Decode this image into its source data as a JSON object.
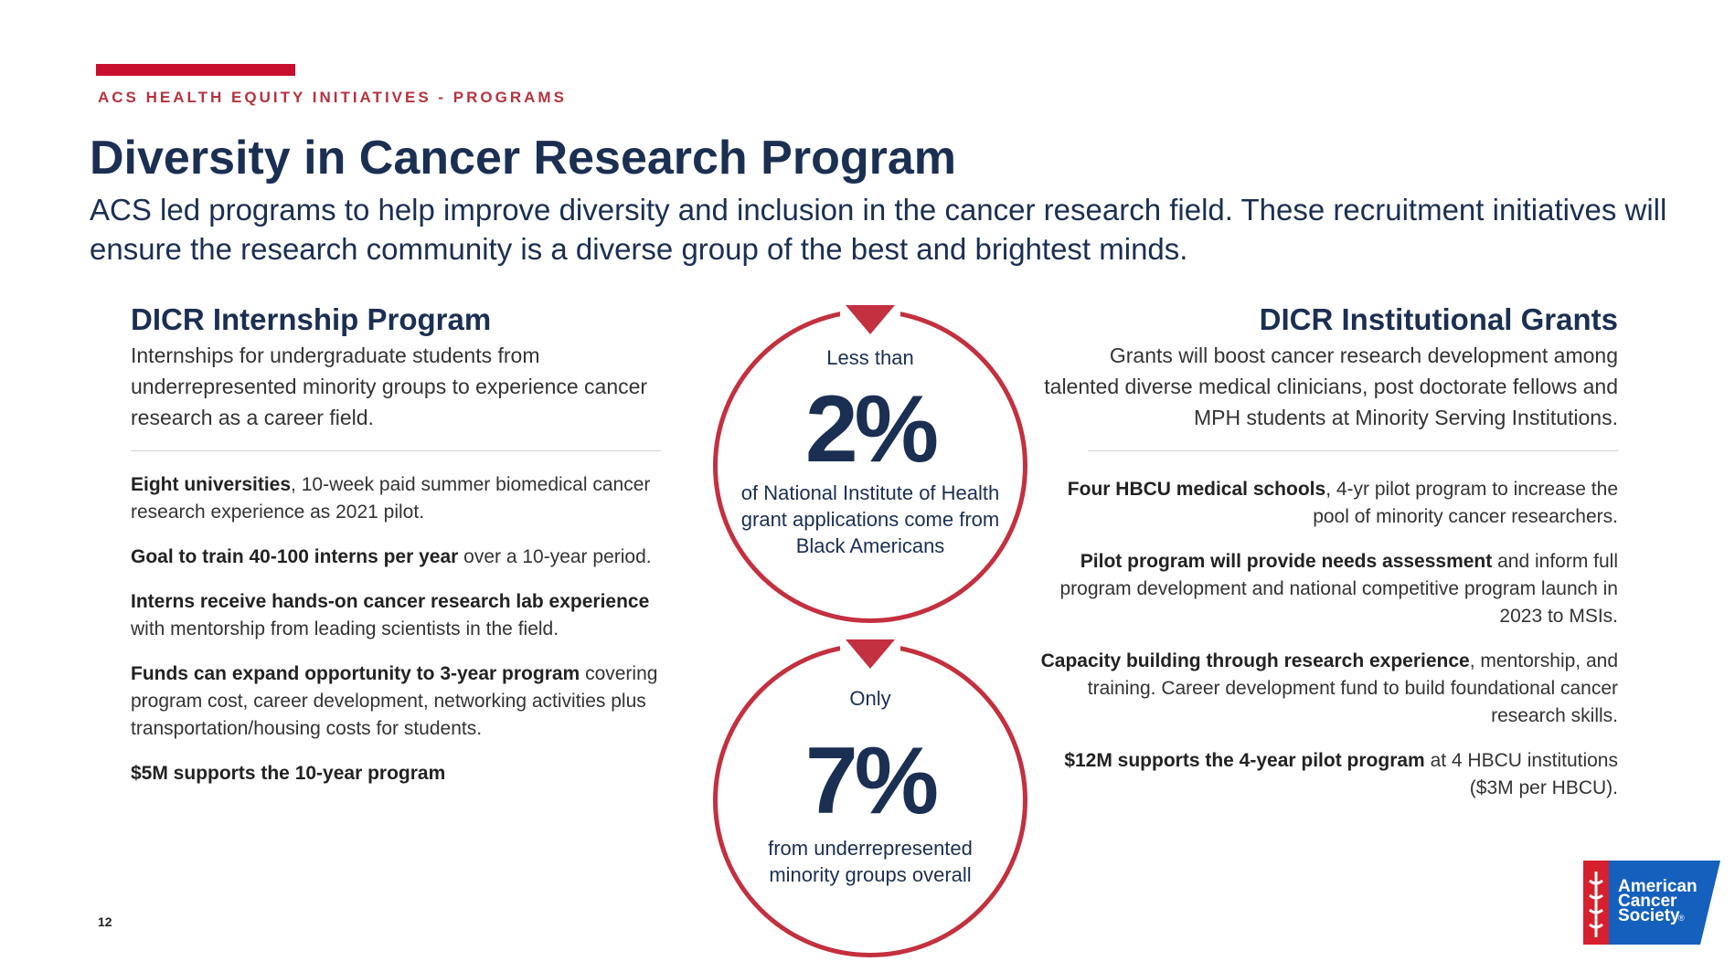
{
  "header": {
    "eyebrow": "ACS HEALTH EQUITY INITIATIVES - PROGRAMS",
    "title": "Diversity in Cancer Research Program",
    "intro": "ACS led programs to help improve diversity and inclusion in the cancer research field. These recruitment initiatives will ensure the research community is a diverse group of the best and brightest minds."
  },
  "left": {
    "title": "DICR Internship Program",
    "lead": "Internships for undergraduate students from underrepresented minority groups to experience cancer research as a career field.",
    "bullets": [
      {
        "bold": "Eight universities",
        "text": ", 10-week paid summer biomedical cancer research experience as 2021 pilot."
      },
      {
        "bold": "Goal to train 40-100 interns per year",
        "text": " over a 10-year period."
      },
      {
        "bold": "Interns receive hands-on cancer research lab experience",
        "text": " with mentorship from leading scientists in the field."
      },
      {
        "bold": "Funds can expand opportunity to 3-year program",
        "text": " covering  program cost, career development, networking activities plus transportation/housing costs for students."
      },
      {
        "bold": "$5M supports the 10-year program",
        "text": ""
      }
    ]
  },
  "right": {
    "title": "DICR Institutional Grants",
    "lead": "Grants will boost cancer research development among talented diverse medical clinicians, post doctorate fellows and MPH students at Minority Serving Institutions.",
    "bullets": [
      {
        "bold": "Four HBCU medical schools",
        "text": ", 4-yr pilot program to increase the pool of minority cancer researchers."
      },
      {
        "bold": "Pilot program will provide needs assessment",
        "text": " and inform full program development and national competitive program launch in 2023 to MSIs."
      },
      {
        "bold": "Capacity building through research experience",
        "text": ", mentorship, and training.  Career development fund to build foundational cancer research skills."
      },
      {
        "bold": "$12M supports the 4-year pilot program",
        "text": " at 4 HBCU institutions ($3M per HBCU)."
      }
    ]
  },
  "stats": [
    {
      "pre": "Less than",
      "value": "2%",
      "desc": "of National Institute of Health grant applications come from Black Americans"
    },
    {
      "pre": "Only",
      "value": "7%",
      "desc": "from underrepresented minority groups overall"
    }
  ],
  "footer": {
    "page_number": "12"
  },
  "logo": {
    "text_line1": "American",
    "text_line2": "Cancer",
    "text_line3": "Society",
    "mark": "®"
  },
  "colors": {
    "navy": "#1b2f52",
    "red": "#c3303f",
    "logo_blue": "#1560bd"
  }
}
